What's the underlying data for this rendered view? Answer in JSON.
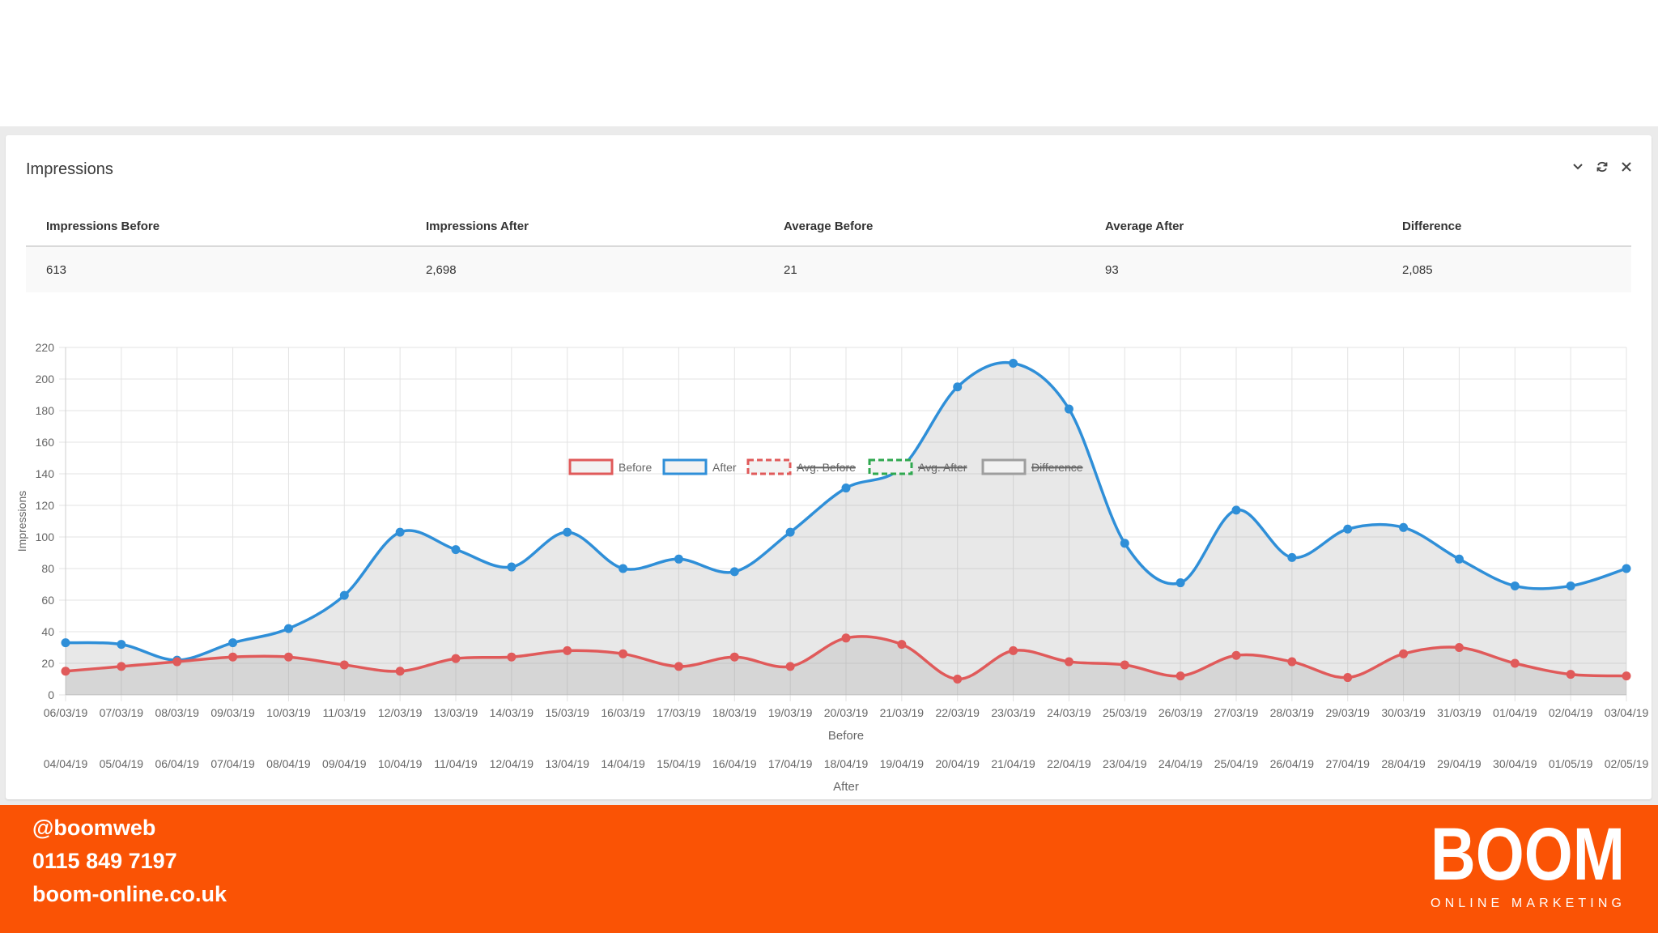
{
  "panel": {
    "title": "Impressions"
  },
  "summary": {
    "headers": [
      "Impressions Before",
      "Impressions After",
      "Average Before",
      "Average After",
      "Difference"
    ],
    "values": [
      "613",
      "2,698",
      "21",
      "93",
      "2,085"
    ]
  },
  "colors": {
    "before": "#e05a5a",
    "after": "#2f8fd8",
    "avg_before": "#e05a5a",
    "avg_after": "#2fa84f",
    "difference": "#9e9e9e",
    "accent": "#fa5305"
  },
  "chart_data": {
    "type": "line",
    "ylabel": "Impressions",
    "ylim": [
      0,
      220
    ],
    "yticks": [
      0,
      20,
      40,
      60,
      80,
      100,
      120,
      140,
      160,
      180,
      200,
      220
    ],
    "grid": true,
    "legend_position": "top",
    "legend": [
      {
        "label": "Before",
        "style": "solid",
        "hidden": false
      },
      {
        "label": "After",
        "style": "solid",
        "hidden": false
      },
      {
        "label": "Avg. Before",
        "style": "dashed",
        "hidden": true
      },
      {
        "label": "Avg. After",
        "style": "dashed",
        "hidden": true
      },
      {
        "label": "Difference",
        "style": "solid",
        "hidden": true
      }
    ],
    "x_axes": [
      {
        "label": "Before",
        "categories": [
          "06/03/19",
          "07/03/19",
          "08/03/19",
          "09/03/19",
          "10/03/19",
          "11/03/19",
          "12/03/19",
          "13/03/19",
          "14/03/19",
          "15/03/19",
          "16/03/19",
          "17/03/19",
          "18/03/19",
          "19/03/19",
          "20/03/19",
          "21/03/19",
          "22/03/19",
          "23/03/19",
          "24/03/19",
          "25/03/19",
          "26/03/19",
          "27/03/19",
          "28/03/19",
          "29/03/19",
          "30/03/19",
          "31/03/19",
          "01/04/19",
          "02/04/19",
          "03/04/19"
        ]
      },
      {
        "label": "After",
        "categories": [
          "04/04/19",
          "05/04/19",
          "06/04/19",
          "07/04/19",
          "08/04/19",
          "09/04/19",
          "10/04/19",
          "11/04/19",
          "12/04/19",
          "13/04/19",
          "14/04/19",
          "15/04/19",
          "16/04/19",
          "17/04/19",
          "18/04/19",
          "19/04/19",
          "20/04/19",
          "21/04/19",
          "22/04/19",
          "23/04/19",
          "24/04/19",
          "25/04/19",
          "26/04/19",
          "27/04/19",
          "28/04/19",
          "29/04/19",
          "30/04/19",
          "01/05/19",
          "02/05/19"
        ]
      }
    ],
    "series": [
      {
        "name": "Before",
        "values": [
          15,
          18,
          21,
          24,
          24,
          19,
          15,
          23,
          24,
          28,
          26,
          18,
          24,
          18,
          36,
          32,
          10,
          28,
          21,
          19,
          12,
          25,
          21,
          11,
          26,
          30,
          20,
          13,
          12
        ]
      },
      {
        "name": "After",
        "values": [
          33,
          32,
          22,
          33,
          42,
          63,
          103,
          92,
          81,
          103,
          80,
          86,
          78,
          103,
          131,
          144,
          195,
          210,
          181,
          96,
          71,
          117,
          87,
          105,
          106,
          86,
          69,
          69,
          80
        ]
      }
    ]
  },
  "footer": {
    "twitter": "@boomweb",
    "phone": "0115 849 7197",
    "website": "boom-online.co.uk",
    "logo_text": "BOOM",
    "logo_tagline": "ONLINE MARKETING"
  }
}
